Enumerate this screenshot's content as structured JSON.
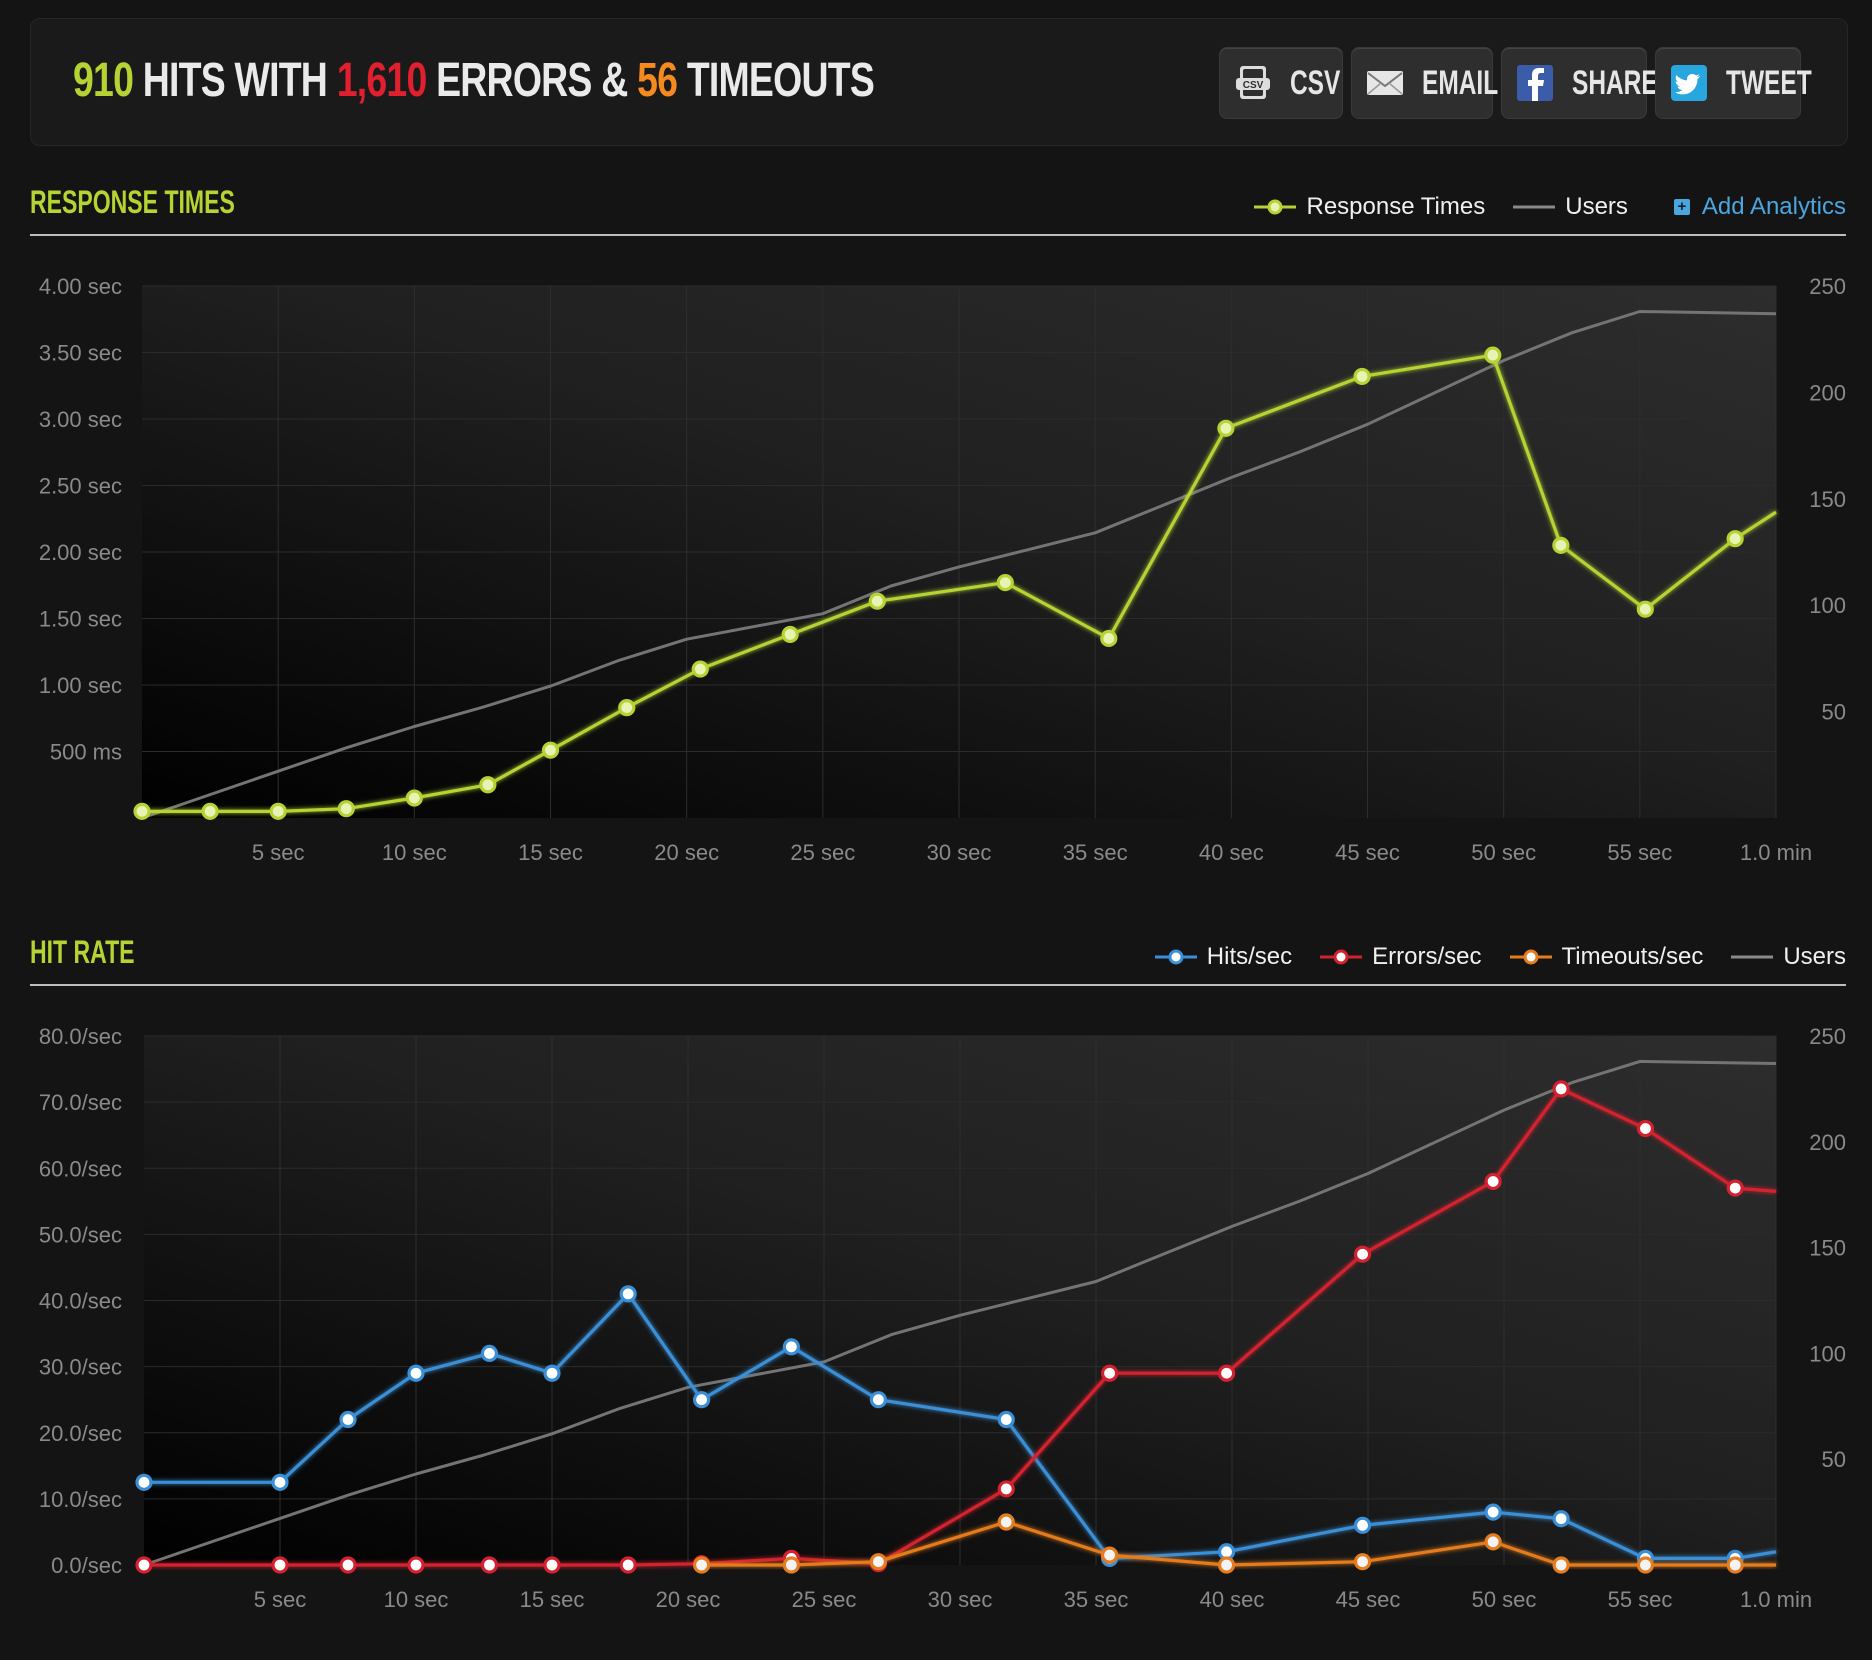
{
  "summary": {
    "hits": "910",
    "hits_label": " HITS WITH ",
    "errors": "1,610",
    "errors_label": " ERRORS & ",
    "timeouts": "56",
    "timeouts_label": " TIMEOUTS"
  },
  "share_buttons": [
    {
      "label": "CSV",
      "icon": "csv-file-icon"
    },
    {
      "label": "EMAIL",
      "icon": "envelope-icon"
    },
    {
      "label": "SHARE",
      "icon": "facebook-icon"
    },
    {
      "label": "TWEET",
      "icon": "twitter-icon"
    }
  ],
  "sections": {
    "response": {
      "title": "RESPONSE TIMES",
      "legend": [
        "Response Times",
        "Users"
      ],
      "add_analytics": "Add Analytics"
    },
    "hitrate": {
      "title": "HIT RATE",
      "legend": [
        "Hits/sec",
        "Errors/sec",
        "Timeouts/sec",
        "Users"
      ]
    }
  },
  "colors": {
    "response": "#b5d332",
    "hits": "#3a8fd6",
    "errors": "#d4212f",
    "timeouts": "#e57c1f",
    "users": "#6e6e6e",
    "link": "#4ba6de"
  },
  "chart_data": [
    {
      "type": "line",
      "title": "RESPONSE TIMES",
      "x_unit": "sec",
      "xlim": [
        0,
        60
      ],
      "x_ticks": [
        "5 sec",
        "10 sec",
        "15 sec",
        "20 sec",
        "25 sec",
        "30 sec",
        "35 sec",
        "40 sec",
        "45 sec",
        "50 sec",
        "55 sec",
        "1.0 min"
      ],
      "y_left_ticks": [
        "500 ms",
        "1.00 sec",
        "1.50 sec",
        "2.00 sec",
        "2.50 sec",
        "3.00 sec",
        "3.50 sec",
        "4.00 sec"
      ],
      "y_left_lim": [
        0,
        4.0
      ],
      "y_right_ticks": [
        "50",
        "100",
        "150",
        "200",
        "250"
      ],
      "y_right_lim": [
        0,
        250
      ],
      "series": [
        {
          "name": "Response Times",
          "axis": "left",
          "markers": true,
          "points": [
            [
              0,
              0.05
            ],
            [
              2.5,
              0.05
            ],
            [
              5,
              0.05
            ],
            [
              7.5,
              0.07
            ],
            [
              10,
              0.15
            ],
            [
              12.7,
              0.25
            ],
            [
              15,
              0.51
            ],
            [
              17.8,
              0.83
            ],
            [
              20.5,
              1.12
            ],
            [
              23.8,
              1.38
            ],
            [
              27,
              1.63
            ],
            [
              31.7,
              1.77
            ],
            [
              35.5,
              1.35
            ],
            [
              39.8,
              2.93
            ],
            [
              44.8,
              3.32
            ],
            [
              49.6,
              3.48
            ],
            [
              52.1,
              2.05
            ],
            [
              55.2,
              1.57
            ],
            [
              58.5,
              2.1
            ]
          ],
          "tail": [
            60,
            2.3
          ]
        },
        {
          "name": "Users",
          "axis": "right",
          "markers": false,
          "points": [
            [
              0,
              0
            ],
            [
              5,
              22
            ],
            [
              7.5,
              33
            ],
            [
              10,
              43
            ],
            [
              12.5,
              52
            ],
            [
              15,
              62
            ],
            [
              17.5,
              74
            ],
            [
              20,
              84
            ],
            [
              25,
              96
            ],
            [
              27.5,
              109
            ],
            [
              30,
              118
            ],
            [
              32.5,
              126
            ],
            [
              35,
              134
            ],
            [
              37.5,
              147
            ],
            [
              40,
              160
            ],
            [
              42.5,
              172
            ],
            [
              45,
              185
            ],
            [
              47.5,
              200
            ],
            [
              50,
              215
            ],
            [
              52.5,
              228
            ],
            [
              55,
              238
            ],
            [
              60,
              237
            ]
          ]
        }
      ]
    },
    {
      "type": "line",
      "title": "HIT RATE",
      "x_unit": "sec",
      "xlim": [
        0,
        60
      ],
      "x_ticks": [
        "5 sec",
        "10 sec",
        "15 sec",
        "20 sec",
        "25 sec",
        "30 sec",
        "35 sec",
        "40 sec",
        "45 sec",
        "50 sec",
        "55 sec",
        "1.0 min"
      ],
      "y_left_ticks": [
        "0.0/sec",
        "10.0/sec",
        "20.0/sec",
        "30.0/sec",
        "40.0/sec",
        "50.0/sec",
        "60.0/sec",
        "70.0/sec",
        "80.0/sec"
      ],
      "y_left_lim": [
        0,
        80
      ],
      "y_right_ticks": [
        "50",
        "100",
        "150",
        "200",
        "250"
      ],
      "y_right_lim": [
        0,
        250
      ],
      "series": [
        {
          "name": "Hits/sec",
          "axis": "left",
          "markers": true,
          "points": [
            [
              0,
              12.5
            ],
            [
              5,
              12.5
            ],
            [
              7.5,
              22
            ],
            [
              10,
              29
            ],
            [
              12.7,
              32
            ],
            [
              15,
              29
            ],
            [
              17.8,
              41
            ],
            [
              20.5,
              25
            ],
            [
              23.8,
              33
            ],
            [
              27,
              25
            ],
            [
              31.7,
              22
            ],
            [
              35.5,
              1
            ],
            [
              39.8,
              2
            ],
            [
              44.8,
              6
            ],
            [
              49.6,
              8
            ],
            [
              52.1,
              7
            ],
            [
              55.2,
              1
            ],
            [
              58.5,
              1
            ]
          ],
          "tail": [
            60,
            2
          ]
        },
        {
          "name": "Errors/sec",
          "axis": "left",
          "markers": true,
          "points": [
            [
              0,
              0
            ],
            [
              5,
              0
            ],
            [
              7.5,
              0
            ],
            [
              10,
              0
            ],
            [
              12.7,
              0
            ],
            [
              15,
              0
            ],
            [
              17.8,
              0
            ],
            [
              20.5,
              0.2
            ],
            [
              23.8,
              1
            ],
            [
              27,
              0.2
            ],
            [
              31.7,
              11.5
            ],
            [
              35.5,
              29
            ],
            [
              39.8,
              29
            ],
            [
              44.8,
              47
            ],
            [
              49.6,
              58
            ],
            [
              52.1,
              72
            ],
            [
              55.2,
              66
            ],
            [
              58.5,
              57
            ]
          ],
          "tail": [
            60,
            56.5
          ]
        },
        {
          "name": "Timeouts/sec",
          "axis": "left",
          "markers": true,
          "points": [
            [
              20.5,
              0
            ],
            [
              23.8,
              0
            ],
            [
              27,
              0.5
            ],
            [
              31.7,
              6.5
            ],
            [
              35.5,
              1.5
            ],
            [
              39.8,
              0
            ],
            [
              44.8,
              0.5
            ],
            [
              49.6,
              3.5
            ],
            [
              52.1,
              0
            ],
            [
              55.2,
              0
            ],
            [
              58.5,
              0
            ]
          ],
          "tail": [
            60,
            0
          ]
        },
        {
          "name": "Users",
          "axis": "right",
          "markers": false,
          "points": [
            [
              0,
              0
            ],
            [
              5,
              22
            ],
            [
              7.5,
              33
            ],
            [
              10,
              43
            ],
            [
              12.5,
              52
            ],
            [
              15,
              62
            ],
            [
              17.5,
              74
            ],
            [
              20,
              84
            ],
            [
              25,
              96
            ],
            [
              27.5,
              109
            ],
            [
              30,
              118
            ],
            [
              32.5,
              126
            ],
            [
              35,
              134
            ],
            [
              37.5,
              147
            ],
            [
              40,
              160
            ],
            [
              42.5,
              172
            ],
            [
              45,
              185
            ],
            [
              47.5,
              200
            ],
            [
              50,
              215
            ],
            [
              52.5,
              228
            ],
            [
              55,
              238
            ],
            [
              60,
              237
            ]
          ]
        }
      ]
    }
  ]
}
